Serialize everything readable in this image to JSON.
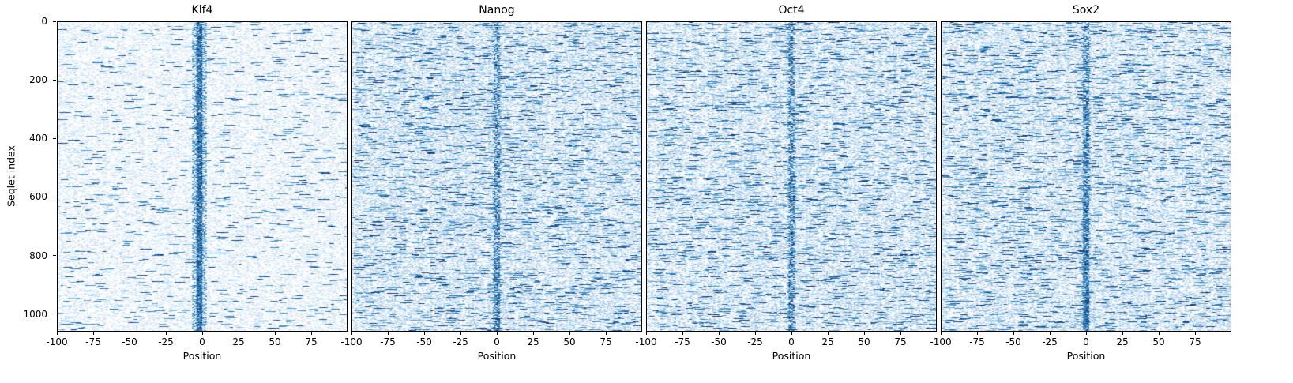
{
  "figure": {
    "background": "#ffffff",
    "accent_dark": "#08306b"
  },
  "chart_data": {
    "type": "heatmap",
    "title": "",
    "xlabel": "Position",
    "ylabel": "Seqlet index",
    "xlim": [
      -100,
      100
    ],
    "ylim": [
      0,
      1060
    ],
    "x_ticks": [
      -100,
      -75,
      -50,
      -25,
      0,
      25,
      50,
      75
    ],
    "y_ticks": [
      0,
      200,
      400,
      600,
      800,
      1000
    ],
    "grid": false,
    "legend": false,
    "colormap": "Blues",
    "colormap_stops": [
      "#f7fbff",
      "#c6dbef",
      "#6baed6",
      "#3182bd",
      "#08306b"
    ],
    "panels": [
      {
        "title": "Klf4",
        "feature": "dense dark vertical band just left of position 0",
        "render": {
          "seed": 42,
          "cols": 200,
          "speckle_prob": 0.32,
          "speckle_v": [
            0.04,
            0.28
          ],
          "dash_prob": 0.01,
          "dash_len": [
            2,
            8
          ],
          "dash_v": [
            0.45,
            0.95
          ],
          "streak_prob": 0.1,
          "streak_gain": [
            2.5,
            4.0
          ],
          "stripe": {
            "center": -2,
            "width": 9,
            "core_width": 4,
            "edge_prob": 0.45,
            "edge_v": [
              0.35,
              0.85
            ],
            "core_prob_top": 0.9,
            "core_prob_bottom": 0.93,
            "core_v": [
              0.6,
              1.0
            ]
          }
        }
      },
      {
        "title": "Nanog",
        "feature": "dense speckle with intermittent dark band at position 0",
        "render": {
          "seed": 7,
          "cols": 200,
          "speckle_prob": 0.52,
          "speckle_v": [
            0.05,
            0.42
          ],
          "dash_prob": 0.028,
          "dash_len": [
            2,
            8
          ],
          "dash_v": [
            0.45,
            1.0
          ],
          "streak_prob": 0.14,
          "streak_gain": [
            2.0,
            3.5
          ],
          "stripe": {
            "center": 0,
            "width": 5,
            "core_width": 3,
            "edge_prob": 0.3,
            "edge_v": [
              0.35,
              0.8
            ],
            "core_prob_top": 0.45,
            "core_prob_bottom": 0.7,
            "core_v": [
              0.55,
              1.0
            ]
          }
        }
      },
      {
        "title": "Oct4",
        "feature": "dense speckle with dashed dark band at position 0",
        "render": {
          "seed": 13,
          "cols": 200,
          "speckle_prob": 0.52,
          "speckle_v": [
            0.05,
            0.42
          ],
          "dash_prob": 0.028,
          "dash_len": [
            2,
            8
          ],
          "dash_v": [
            0.45,
            1.0
          ],
          "streak_prob": 0.14,
          "streak_gain": [
            2.0,
            3.5
          ],
          "stripe": {
            "center": 0,
            "width": 6,
            "core_width": 3,
            "edge_prob": 0.28,
            "edge_v": [
              0.35,
              0.8
            ],
            "core_prob_top": 0.5,
            "core_prob_bottom": 0.62,
            "core_v": [
              0.55,
              1.0
            ]
          }
        }
      },
      {
        "title": "Sox2",
        "feature": "dense speckle, band at position 0 strengthening toward bottom",
        "render": {
          "seed": 99,
          "cols": 200,
          "speckle_prob": 0.5,
          "speckle_v": [
            0.05,
            0.42
          ],
          "dash_prob": 0.028,
          "dash_len": [
            2,
            8
          ],
          "dash_v": [
            0.45,
            1.0
          ],
          "streak_prob": 0.14,
          "streak_gain": [
            2.0,
            3.5
          ],
          "stripe": {
            "center": 0,
            "width": 6,
            "core_width": 3,
            "edge_prob": 0.3,
            "edge_v": [
              0.35,
              0.85
            ],
            "core_prob_top": 0.45,
            "core_prob_bottom": 0.92,
            "core_v": [
              0.55,
              1.0
            ]
          }
        }
      }
    ]
  }
}
